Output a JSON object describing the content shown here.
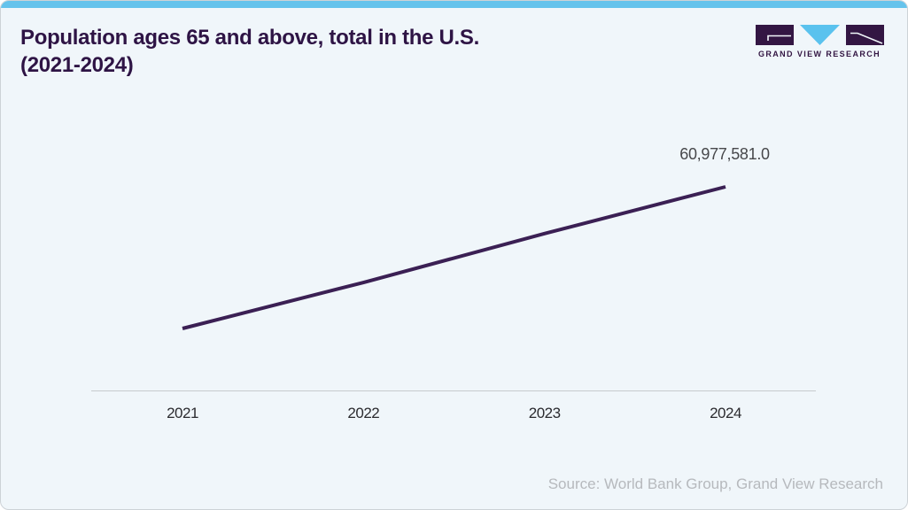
{
  "header": {
    "title": "Population ages 65 and above, total in the U.S. (2021-2024)"
  },
  "logo": {
    "text": "GRAND VIEW RESEARCH",
    "purple": "#331643",
    "blue": "#5ac2ee"
  },
  "colors": {
    "top_bar": "#65c3ec",
    "card_background": "#f0f6fa",
    "line": "#3b2054",
    "axis_line": "#c7cacd",
    "tick_text": "#2b2b2f",
    "data_label_text": "#47484b",
    "source_text": "#b6b9bd",
    "title_text": "#2e1445"
  },
  "chart_data": {
    "type": "line",
    "title": "Population ages 65 and above, total in the U.S. (2021-2024)",
    "categories": [
      "2021",
      "2022",
      "2023",
      "2024"
    ],
    "values": [
      55900000,
      57550000,
      59300000,
      60977581
    ],
    "point_label": {
      "category": "2024",
      "text": "60,977,581.0"
    },
    "xlabel": "",
    "ylabel": "",
    "line_color": "#3b2054",
    "grid": false,
    "legend": false
  },
  "footer": {
    "source": "Source: World Bank Group, Grand View Research"
  }
}
